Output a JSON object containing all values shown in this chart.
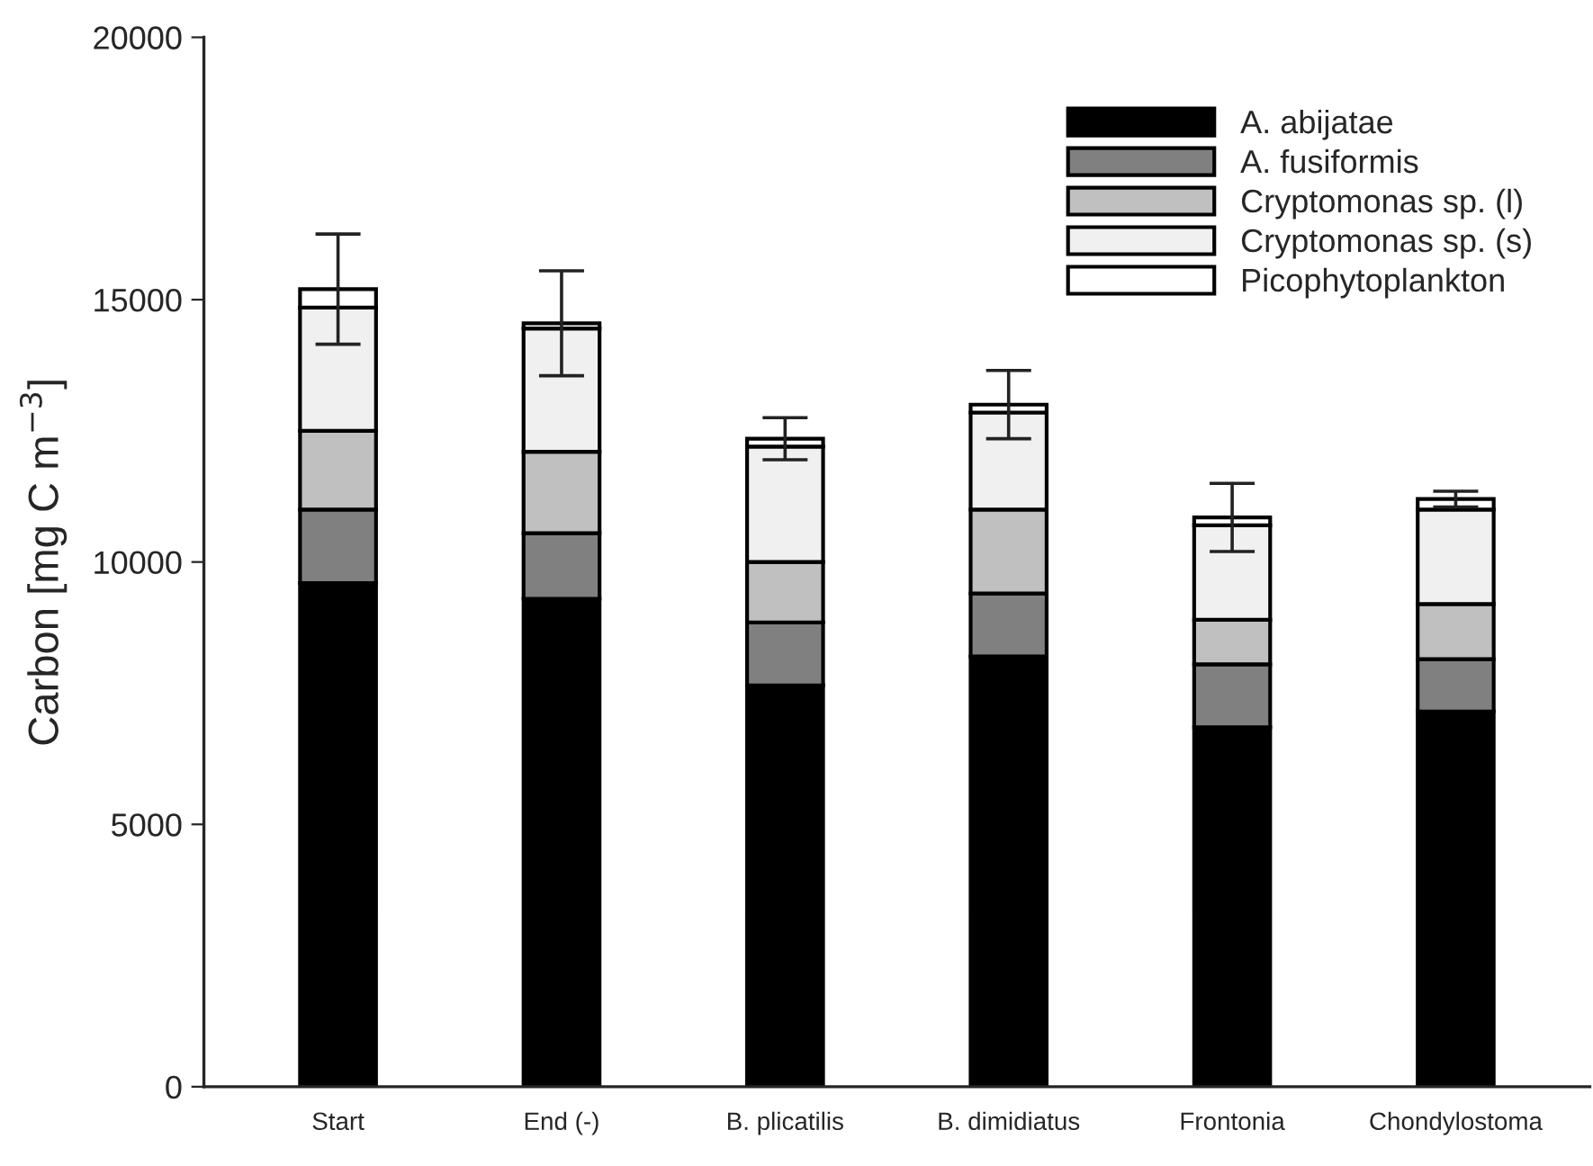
{
  "chart_data": {
    "type": "bar",
    "stacked": true,
    "ylabel": "Carbon [mg C m$^{−3}$]",
    "categories": [
      "Start",
      "End (-)",
      "B. plicatilis",
      "B. dimidiatus",
      "Frontonia",
      "Chondylostoma"
    ],
    "series": [
      {
        "name": "A. abijatae",
        "color": "#000000",
        "values": [
          9600,
          9300,
          7650,
          8200,
          6850,
          7150
        ]
      },
      {
        "name": "A. fusiformis",
        "color": "#808080",
        "values": [
          1400,
          1250,
          1200,
          1200,
          1200,
          1000
        ]
      },
      {
        "name": "Cryptomonas sp. (l)",
        "color": "#c0c0c0",
        "values": [
          1500,
          1550,
          1150,
          1600,
          850,
          1050
        ]
      },
      {
        "name": "Cryptomonas sp. (s)",
        "color": "#f0f0f0",
        "values": [
          2350,
          2350,
          2200,
          1850,
          1800,
          1800
        ]
      },
      {
        "name": "Picophytoplankton",
        "color": "#ffffff",
        "values": [
          350,
          100,
          150,
          150,
          150,
          200
        ],
        "errors": [
          1050,
          1000,
          400,
          650,
          650,
          150
        ]
      }
    ],
    "ylim": [
      0,
      20000
    ],
    "yticks": [
      0,
      5000,
      10000,
      15000,
      20000
    ],
    "grid": false,
    "legend": "top right"
  }
}
